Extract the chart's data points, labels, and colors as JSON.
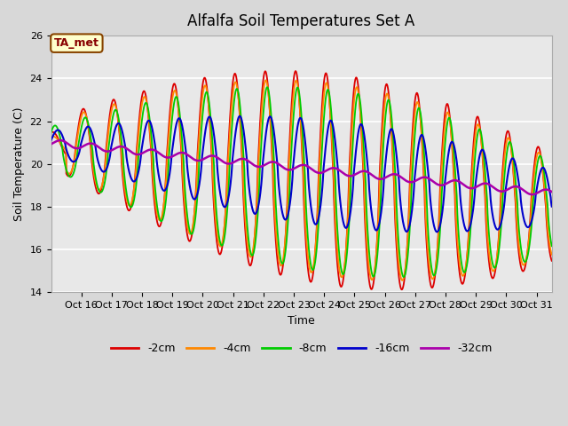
{
  "title": "Alfalfa Soil Temperatures Set A",
  "xlabel": "Time",
  "ylabel": "Soil Temperature (C)",
  "ylim": [
    14,
    26
  ],
  "xlim": [
    15.0,
    31.5
  ],
  "xtick_labels": [
    "Oct 16",
    "Oct 17",
    "Oct 18",
    "Oct 19",
    "Oct 20",
    "Oct 21",
    "Oct 22",
    "Oct 23",
    "Oct 24",
    "Oct 25",
    "Oct 26",
    "Oct 27",
    "Oct 28",
    "Oct 29",
    "Oct 30",
    "Oct 31"
  ],
  "xtick_positions": [
    16,
    17,
    18,
    19,
    20,
    21,
    22,
    23,
    24,
    25,
    26,
    27,
    28,
    29,
    30,
    31
  ],
  "ytick_positions": [
    14,
    16,
    18,
    20,
    22,
    24,
    26
  ],
  "colors": {
    "-2cm": "#dd0000",
    "-4cm": "#ff8800",
    "-8cm": "#00cc00",
    "-16cm": "#0000cc",
    "-32cm": "#aa00aa"
  },
  "annotation_text": "TA_met",
  "annotation_box_facecolor": "#ffffcc",
  "annotation_box_edgecolor": "#884400",
  "annotation_text_color": "#880000",
  "fig_facecolor": "#d8d8d8",
  "plot_facecolor": "#e8e8e8",
  "grid_color": "#ffffff"
}
